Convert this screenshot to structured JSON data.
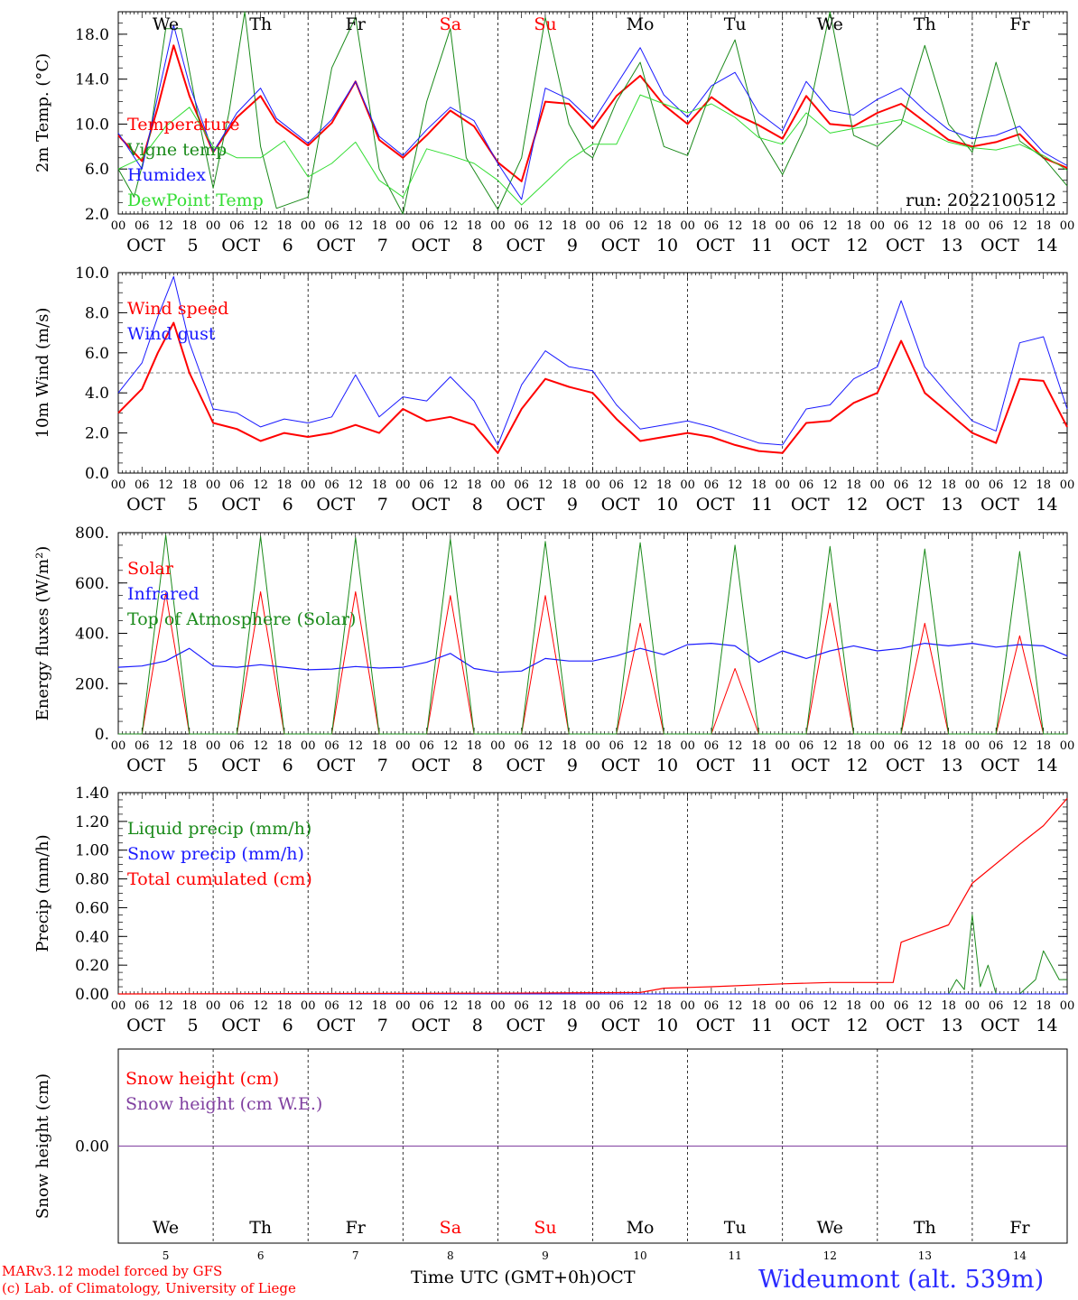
{
  "run_label": "run: 2022100512",
  "time_axis": {
    "hour_ticks": [
      "00",
      "06",
      "12",
      "18"
    ],
    "day_columns": [
      {
        "month": "OCT",
        "day": "5",
        "dow": "We",
        "weekend": false
      },
      {
        "month": "OCT",
        "day": "6",
        "dow": "Th",
        "weekend": false
      },
      {
        "month": "OCT",
        "day": "7",
        "dow": "Fr",
        "weekend": false
      },
      {
        "month": "OCT",
        "day": "8",
        "dow": "Sa",
        "weekend": true
      },
      {
        "month": "OCT",
        "day": "9",
        "dow": "Su",
        "weekend": true
      },
      {
        "month": "OCT",
        "day": "10",
        "dow": "Mo",
        "weekend": false
      },
      {
        "month": "OCT",
        "day": "11",
        "dow": "Tu",
        "weekend": false
      },
      {
        "month": "OCT",
        "day": "12",
        "dow": "We",
        "weekend": false
      },
      {
        "month": "OCT",
        "day": "13",
        "dow": "Th",
        "weekend": false
      },
      {
        "month": "OCT",
        "day": "14",
        "dow": "Fr",
        "weekend": false
      }
    ],
    "x_unit": "hours since 2022-10-05 00 UTC",
    "xlim": [
      0,
      240
    ]
  },
  "colors": {
    "red": "#ff0000",
    "green": "#1a8a1a",
    "blue": "#1a1aff",
    "light_green": "#33dd33",
    "purple": "#8040a0",
    "weekend": "#ff0000",
    "grid": "#000000"
  },
  "footer": {
    "model": "MARv3.12 model forced by GFS",
    "lab": "(c) Lab. of Climatology, University of Liege",
    "xlabel": "Time UTC (GMT+0h)",
    "month": "OCT",
    "station": "Wideumont (alt. 539m)"
  },
  "chart_data": [
    {
      "type": "line",
      "id": "temperature",
      "ylabel": "2m Temp. (°C)",
      "ylim": [
        2,
        20
      ],
      "yticks": [
        2,
        6,
        10,
        14,
        18
      ],
      "ytick_labels": [
        "2.0",
        "6.0",
        "10.0",
        "14.0",
        "18.0"
      ],
      "show_dow": true,
      "series": [
        {
          "name": "Temperature",
          "color": "#ff0000",
          "width": 2,
          "x": [
            0,
            6,
            10,
            14,
            18,
            24,
            30,
            36,
            40,
            48,
            54,
            60,
            66,
            72,
            78,
            84,
            90,
            96,
            102,
            108,
            114,
            120,
            126,
            132,
            138,
            144,
            150,
            156,
            162,
            168,
            174,
            180,
            186,
            192,
            198,
            204,
            210,
            216,
            222,
            228,
            234,
            240
          ],
          "y": [
            9.0,
            6.7,
            11.5,
            17.0,
            12.5,
            7.5,
            10.6,
            12.5,
            10.2,
            8.1,
            10.1,
            13.8,
            8.6,
            7.0,
            9.0,
            11.2,
            9.8,
            6.6,
            4.9,
            12.0,
            11.8,
            9.6,
            12.5,
            14.3,
            11.7,
            10.0,
            12.4,
            10.9,
            9.9,
            8.7,
            12.5,
            10.0,
            9.8,
            11.0,
            11.8,
            10.2,
            8.6,
            8.0,
            8.4,
            9.1,
            7.0,
            6.1
          ]
        },
        {
          "name": "Vigne temp",
          "color": "#1a8a1a",
          "width": 1,
          "x": [
            0,
            4,
            8,
            12,
            16,
            20,
            24,
            28,
            32,
            36,
            40,
            48,
            54,
            60,
            66,
            72,
            78,
            84,
            88,
            96,
            102,
            108,
            114,
            118,
            120,
            126,
            132,
            138,
            144,
            150,
            156,
            162,
            168,
            174,
            180,
            186,
            192,
            198,
            204,
            210,
            216,
            222,
            228,
            234,
            240
          ],
          "y": [
            6.0,
            3.5,
            9.0,
            18.5,
            18.5,
            11.0,
            4.3,
            11.0,
            20.0,
            8.0,
            2.5,
            3.5,
            15.0,
            19.5,
            6.0,
            2.0,
            12.0,
            18.5,
            7.0,
            2.4,
            7.0,
            19.5,
            10.0,
            7.5,
            7.0,
            12.0,
            15.5,
            8.0,
            7.2,
            13.0,
            17.5,
            9.0,
            5.5,
            10.0,
            20.0,
            9.0,
            8.0,
            10.0,
            17.0,
            10.0,
            7.5,
            15.5,
            8.5,
            7.0,
            4.5
          ]
        },
        {
          "name": "Humidex",
          "color": "#1a1aff",
          "width": 1,
          "x": [
            0,
            6,
            10,
            14,
            18,
            24,
            30,
            36,
            40,
            48,
            54,
            60,
            66,
            72,
            78,
            84,
            90,
            96,
            102,
            108,
            114,
            120,
            126,
            132,
            138,
            144,
            150,
            156,
            162,
            168,
            174,
            180,
            186,
            192,
            198,
            204,
            210,
            216,
            222,
            228,
            234,
            240
          ],
          "y": [
            9.2,
            6.0,
            12.5,
            18.8,
            13.5,
            7.5,
            11.0,
            13.2,
            10.5,
            8.3,
            10.4,
            13.8,
            8.9,
            7.2,
            9.5,
            11.5,
            10.3,
            6.5,
            3.3,
            13.2,
            12.2,
            10.2,
            13.5,
            16.8,
            12.6,
            10.6,
            13.4,
            14.6,
            11.0,
            9.4,
            13.8,
            11.2,
            10.8,
            12.2,
            13.2,
            11.2,
            9.5,
            8.7,
            9.0,
            9.8,
            7.5,
            6.3
          ]
        },
        {
          "name": "DewPoint Temp",
          "color": "#33dd33",
          "width": 1,
          "x": [
            0,
            6,
            12,
            18,
            24,
            30,
            36,
            42,
            48,
            54,
            60,
            66,
            72,
            78,
            84,
            90,
            96,
            102,
            108,
            114,
            120,
            126,
            132,
            138,
            144,
            150,
            156,
            162,
            168,
            174,
            180,
            186,
            192,
            198,
            204,
            210,
            216,
            222,
            228,
            234,
            240
          ],
          "y": [
            6.0,
            7.0,
            9.8,
            11.5,
            8.0,
            7.0,
            7.0,
            8.5,
            5.3,
            6.5,
            8.4,
            5.0,
            3.5,
            7.8,
            7.2,
            6.5,
            5.0,
            2.8,
            4.8,
            6.8,
            8.2,
            8.2,
            12.6,
            11.8,
            11.0,
            11.8,
            10.6,
            8.8,
            8.2,
            11.0,
            9.2,
            9.6,
            10.0,
            10.4,
            9.4,
            8.4,
            7.9,
            7.7,
            8.2,
            7.2,
            5.9
          ]
        }
      ]
    },
    {
      "type": "line",
      "id": "wind",
      "ylabel": "10m Wind (m/s)",
      "ylim": [
        0,
        10
      ],
      "yticks": [
        0,
        2,
        4,
        6,
        8,
        10
      ],
      "ytick_labels": [
        "0.0",
        "2.0",
        "4.0",
        "6.0",
        "8.0",
        "10.0"
      ],
      "reference_line": 5,
      "series": [
        {
          "name": "Wind speed",
          "color": "#ff0000",
          "width": 2,
          "x": [
            0,
            6,
            10,
            14,
            18,
            24,
            30,
            36,
            42,
            48,
            54,
            60,
            66,
            72,
            78,
            84,
            90,
            96,
            102,
            108,
            114,
            120,
            126,
            132,
            138,
            144,
            150,
            156,
            162,
            168,
            174,
            180,
            186,
            192,
            198,
            204,
            210,
            216,
            222,
            228,
            234,
            240
          ],
          "y": [
            3.0,
            4.2,
            6.0,
            7.5,
            5.0,
            2.5,
            2.2,
            1.6,
            2.0,
            1.8,
            2.0,
            2.4,
            2.0,
            3.2,
            2.6,
            2.8,
            2.4,
            1.0,
            3.2,
            4.7,
            4.3,
            4.0,
            2.7,
            1.6,
            1.8,
            2.0,
            1.8,
            1.4,
            1.1,
            1.0,
            2.5,
            2.6,
            3.5,
            4.0,
            6.6,
            4.0,
            3.0,
            2.0,
            1.5,
            4.7,
            4.6,
            2.3
          ]
        },
        {
          "name": "Wind gust",
          "color": "#1a1aff",
          "width": 1,
          "x": [
            0,
            6,
            10,
            14,
            18,
            24,
            30,
            36,
            42,
            48,
            54,
            60,
            66,
            72,
            78,
            84,
            90,
            96,
            102,
            108,
            114,
            120,
            126,
            132,
            138,
            144,
            150,
            156,
            162,
            168,
            174,
            180,
            186,
            192,
            198,
            204,
            210,
            216,
            222,
            228,
            234,
            240
          ],
          "y": [
            4.0,
            5.5,
            7.8,
            9.8,
            6.5,
            3.2,
            3.0,
            2.3,
            2.7,
            2.5,
            2.8,
            4.9,
            2.8,
            3.8,
            3.6,
            4.8,
            3.6,
            1.4,
            4.4,
            6.1,
            5.3,
            5.1,
            3.4,
            2.2,
            2.4,
            2.6,
            2.3,
            1.9,
            1.5,
            1.4,
            3.2,
            3.4,
            4.7,
            5.3,
            8.6,
            5.3,
            3.9,
            2.6,
            2.1,
            6.5,
            6.8,
            3.2
          ]
        }
      ]
    },
    {
      "type": "line",
      "id": "energy",
      "ylabel": "Energy fluxes (W/m²)",
      "ylim": [
        0,
        800
      ],
      "yticks": [
        0,
        200,
        400,
        600,
        800
      ],
      "ytick_labels": [
        "0.",
        "200.",
        "400.",
        "600.",
        "800."
      ],
      "series": [
        {
          "name": "Solar",
          "color": "#ff0000",
          "width": 1,
          "x": [
            0,
            6,
            12,
            18,
            24,
            30,
            36,
            42,
            48,
            54,
            60,
            66,
            72,
            78,
            84,
            90,
            96,
            102,
            108,
            114,
            120,
            126,
            132,
            138,
            144,
            150,
            156,
            162,
            168,
            174,
            180,
            186,
            192,
            198,
            204,
            210,
            216,
            222,
            228,
            234,
            240
          ],
          "y": [
            0,
            0,
            560,
            0,
            0,
            0,
            565,
            0,
            0,
            0,
            565,
            0,
            0,
            0,
            550,
            0,
            0,
            0,
            550,
            0,
            0,
            0,
            440,
            0,
            0,
            0,
            260,
            0,
            0,
            0,
            520,
            0,
            0,
            0,
            440,
            0,
            0,
            0,
            390,
            0,
            0
          ]
        },
        {
          "name": "Infrared",
          "color": "#1a1aff",
          "width": 1.2,
          "x": [
            0,
            6,
            12,
            18,
            24,
            30,
            36,
            42,
            48,
            54,
            60,
            66,
            72,
            78,
            84,
            90,
            96,
            102,
            108,
            114,
            120,
            126,
            132,
            138,
            144,
            150,
            156,
            162,
            168,
            174,
            180,
            186,
            192,
            198,
            204,
            210,
            216,
            222,
            228,
            234,
            240
          ],
          "y": [
            265,
            270,
            290,
            340,
            270,
            265,
            275,
            265,
            255,
            258,
            268,
            262,
            265,
            285,
            320,
            260,
            245,
            250,
            300,
            290,
            290,
            310,
            340,
            315,
            355,
            360,
            350,
            285,
            330,
            300,
            330,
            350,
            330,
            340,
            360,
            350,
            360,
            345,
            355,
            350,
            310
          ]
        },
        {
          "name": "Top of Atmosphere (Solar)",
          "color": "#1a8a1a",
          "width": 1,
          "x": [
            0,
            6,
            12,
            18,
            24,
            30,
            36,
            42,
            48,
            54,
            60,
            66,
            72,
            78,
            84,
            90,
            96,
            102,
            108,
            114,
            120,
            126,
            132,
            138,
            144,
            150,
            156,
            162,
            168,
            174,
            180,
            186,
            192,
            198,
            204,
            210,
            216,
            222,
            228,
            234,
            240
          ],
          "y": [
            0,
            0,
            790,
            0,
            0,
            0,
            785,
            0,
            0,
            0,
            780,
            0,
            0,
            0,
            775,
            0,
            0,
            0,
            765,
            0,
            0,
            0,
            760,
            0,
            0,
            0,
            750,
            0,
            0,
            0,
            745,
            0,
            0,
            0,
            735,
            0,
            0,
            0,
            725,
            0,
            0
          ]
        }
      ]
    },
    {
      "type": "line",
      "id": "precip",
      "ylabel": "Precip (mm/h)",
      "ylim": [
        0,
        1.4
      ],
      "yticks": [
        0,
        0.2,
        0.4,
        0.6,
        0.8,
        1.0,
        1.2,
        1.4
      ],
      "ytick_labels": [
        "0.00",
        "0.20",
        "0.40",
        "0.60",
        "0.80",
        "1.00",
        "1.20",
        "1.40"
      ],
      "series": [
        {
          "name": "Liquid precip (mm/h)",
          "color": "#1a8a1a",
          "width": 1,
          "x": [
            0,
            210,
            212,
            214,
            216,
            218,
            220,
            222,
            224,
            226,
            228,
            230,
            232,
            234,
            236,
            238,
            240
          ],
          "y": [
            0,
            0,
            0.1,
            0.03,
            0.55,
            0.05,
            0.2,
            0,
            0,
            0,
            0,
            0.05,
            0.1,
            0.3,
            0.2,
            0.1,
            0.1
          ]
        },
        {
          "name": "Snow precip (mm/h)",
          "color": "#1a1aff",
          "width": 1,
          "x": [
            0,
            240
          ],
          "y": [
            0,
            0
          ]
        },
        {
          "name": "Total cumulated (cm)",
          "color": "#ff0000",
          "width": 1.2,
          "x": [
            0,
            96,
            132,
            138,
            150,
            168,
            180,
            196,
            198,
            210,
            216,
            228,
            234,
            240
          ],
          "y": [
            0,
            0.005,
            0.01,
            0.04,
            0.05,
            0.07,
            0.08,
            0.08,
            0.36,
            0.48,
            0.77,
            1.04,
            1.17,
            1.36
          ]
        }
      ]
    },
    {
      "type": "line",
      "id": "snow",
      "ylabel": "Snow height (cm)",
      "ylim": [
        -1,
        1
      ],
      "yticks": [
        0
      ],
      "ytick_labels": [
        "0.00"
      ],
      "show_dow_bottom": true,
      "series": [
        {
          "name": "Snow height (cm)",
          "color": "#ff0000",
          "width": 1,
          "x": [
            0,
            240
          ],
          "y": [
            0,
            0
          ]
        },
        {
          "name": "Snow height (cm W.E.)",
          "color": "#8040a0",
          "width": 1,
          "x": [
            0,
            240
          ],
          "y": [
            0,
            0
          ]
        }
      ]
    }
  ]
}
